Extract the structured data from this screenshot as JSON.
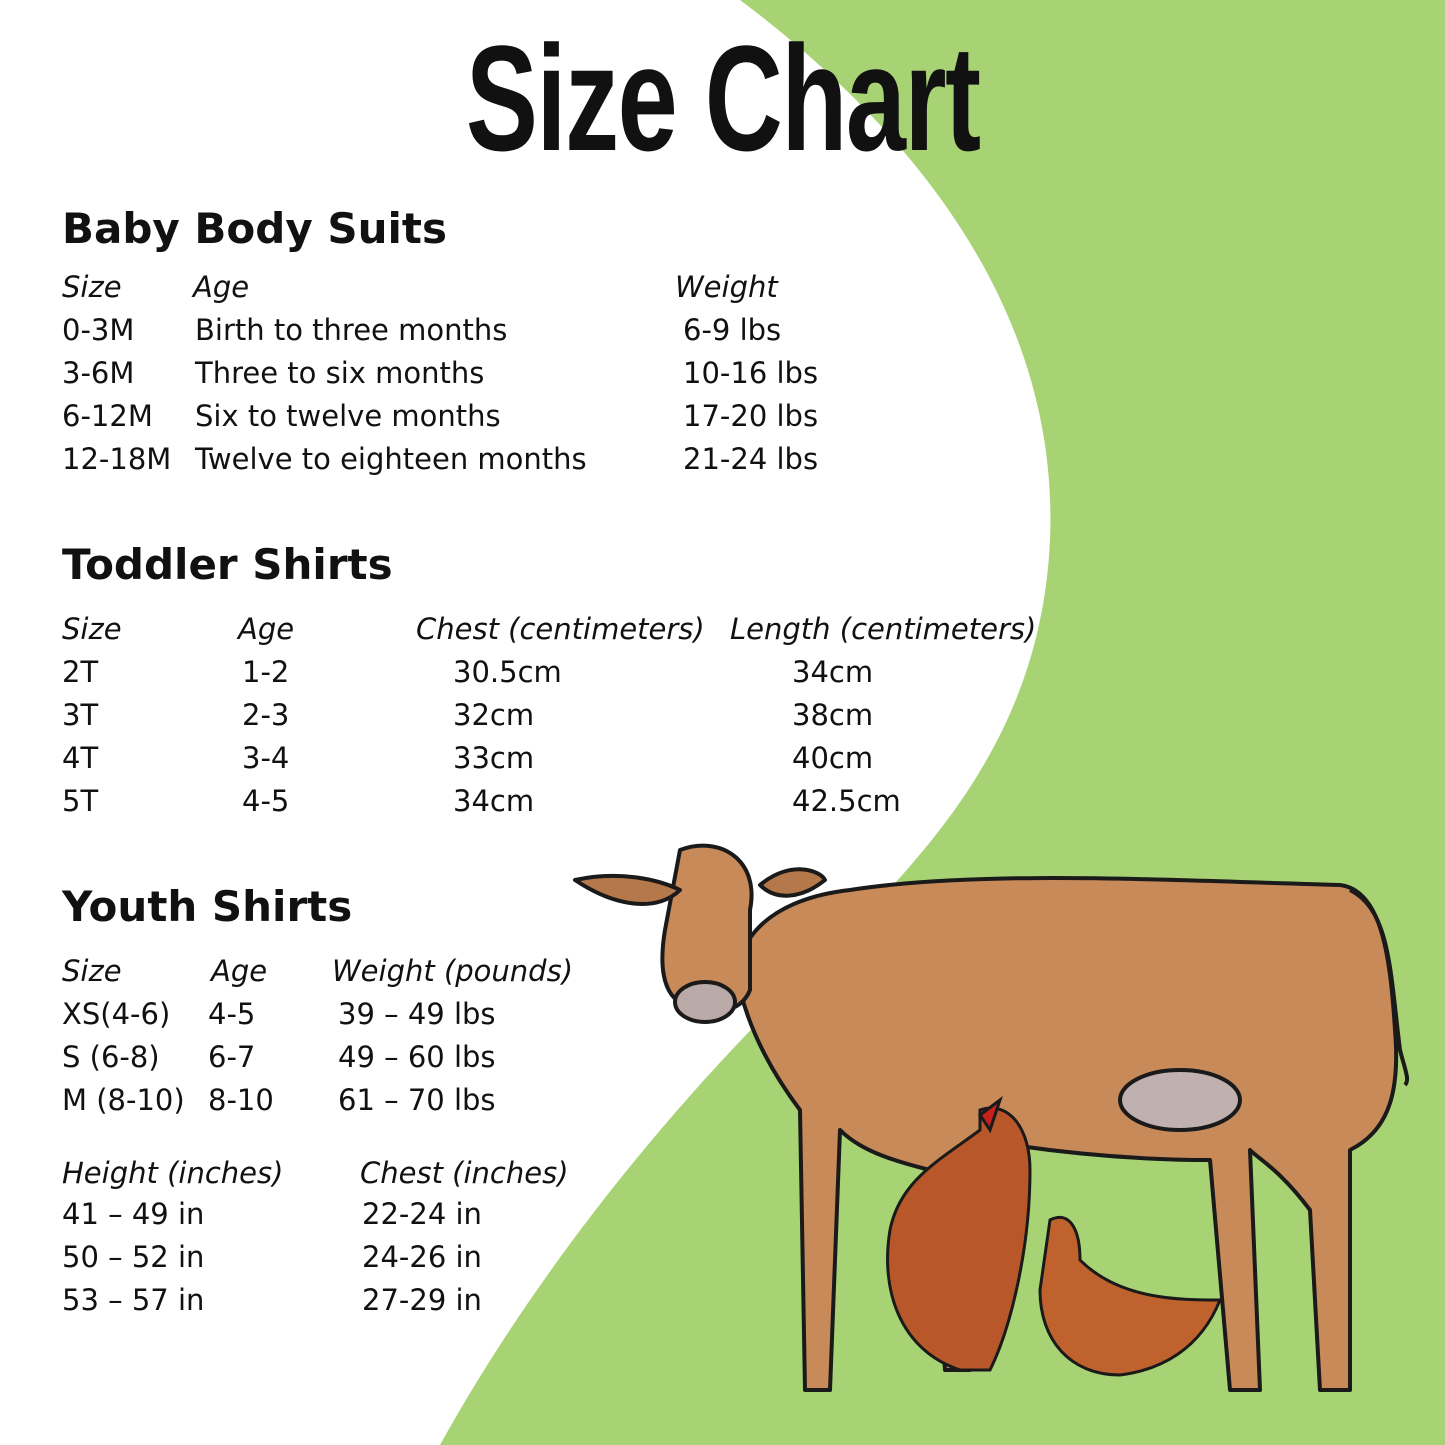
{
  "title": "Size Chart",
  "colors": {
    "background_green": "#a8d374",
    "text": "#111111"
  },
  "baby": {
    "heading": "Baby Body Suits",
    "headers": [
      "Size",
      "Age",
      "Weight"
    ],
    "rows": [
      [
        "0-3M",
        "Birth to three months",
        "6-9 lbs"
      ],
      [
        "3-6M",
        "Three to six months",
        "10-16 lbs"
      ],
      [
        "6-12M",
        "Six to twelve months",
        "17-20 lbs"
      ],
      [
        "12-18M",
        "Twelve to eighteen months",
        "21-24 lbs"
      ]
    ]
  },
  "toddler": {
    "heading": "Toddler Shirts",
    "headers": [
      "Size",
      "Age",
      "Chest (centimeters)",
      "Length (centimeters)"
    ],
    "rows": [
      [
        "2T",
        "1-2",
        "30.5cm",
        "34cm"
      ],
      [
        "3T",
        "2-3",
        "32cm",
        "38cm"
      ],
      [
        "4T",
        "3-4",
        "33cm",
        "40cm"
      ],
      [
        "5T",
        "4-5",
        "34cm",
        "42.5cm"
      ]
    ]
  },
  "youth": {
    "heading": "Youth Shirts",
    "headers": [
      "Size",
      "Age",
      "Weight (pounds)"
    ],
    "rows": [
      [
        "XS(4-6)",
        "4-5",
        "39 – 49 lbs"
      ],
      [
        "S (6-8)",
        "6-7",
        "49 – 60 lbs"
      ],
      [
        "M (8-10)",
        "8-10",
        "61 – 70 lbs"
      ]
    ],
    "headers2": [
      "Height (inches)",
      "Chest (inches)"
    ],
    "rows2": [
      [
        "41 – 49 in",
        "22-24 in"
      ],
      [
        "50 – 52 in",
        "24-26 in"
      ],
      [
        "53 – 57 in",
        "27-29 in"
      ]
    ]
  },
  "illustration": {
    "subjects": [
      "cow",
      "chicken",
      "chicken"
    ]
  }
}
